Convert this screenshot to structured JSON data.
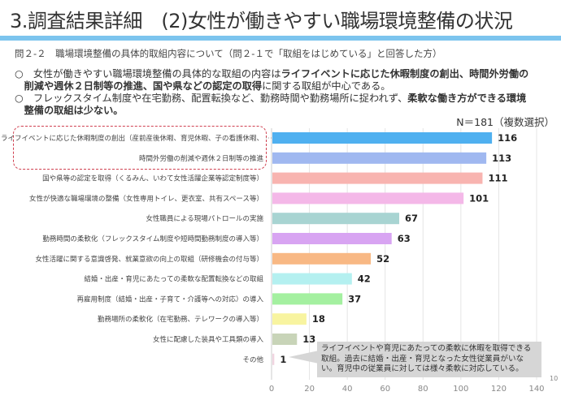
{
  "title": "3.調査結果詳細　(2)女性が働きやすい職場環境整備の状況",
  "question": "問２-２　職場環境整備の具体的取組内容について（問２-１で「取組をはじめている」と回答した方）",
  "bullets": [
    {
      "mark": "○",
      "pre": "　女性が働きやすい職場環境整備の具体的な取組の内容は",
      "b1": "ライフイベントに応じた休暇制度の創出、時間外労働の",
      "b1b": "削減や週休２日制等の推進、国や県などの認定の取得",
      "post": "に関する取組が中心である。"
    },
    {
      "mark": "○",
      "pre": "　フレックスタイム制度や在宅勤務、配置転換など、勤務時間や勤務場所に捉われず、",
      "b1": "柔軟な働き方ができる環境",
      "b1b": "整備の取組は少ない。",
      "post": ""
    }
  ],
  "sample_note": "N＝181（複数選択）",
  "callout": "ライフイベントや育児にあたっての柔軟に休暇を取得できる取組。過去に結婚・出産・育児となった女性従業員がいない。育児中の従業員に対しては様々柔軟に対応している。",
  "page_number": "10",
  "chart_data": {
    "type": "bar",
    "orientation": "horizontal",
    "categories": [
      "ライフイベントに応じた休暇制度の創出（産前産後休暇、育児休暇、子の看護休暇、",
      "時間外労働の削減や週休２日制等の推進",
      "国や県等の認定を取得（くるみん、いわて女性活躍企業等認定制度等）",
      "女性が快適な職場環境の整備（女性専用トイレ、更衣室、共有スペース等）",
      "女性職員による現場パトロールの実施",
      "勤務時間の柔軟化（フレックスタイム制度や短時間勤務制度の導入等）",
      "女性活躍に関する意識啓発、就業意欲の向上の取組（研修機会の付与等）",
      "結婚・出産・育児にあたっての柔軟な配置転換などの取組",
      "再雇用制度（結婚・出産・子育て・介護等への対応）の導入",
      "勤務場所の柔軟化（在宅勤務、テレワークの導入等）",
      "女性に配慮した装具や工具類の導入",
      "その他"
    ],
    "values": [
      116,
      113,
      111,
      101,
      67,
      63,
      52,
      42,
      37,
      18,
      13,
      1
    ],
    "colors": [
      "#4fb0f0",
      "#a0b8f0",
      "#f8b4b0",
      "#f4b8e8",
      "#a8d4d2",
      "#d8a4f2",
      "#f8b884",
      "#b4f0f0",
      "#a4f0a0",
      "#f8f4a0",
      "#c8d4b8",
      "#f0d4e0"
    ],
    "xlim": [
      0,
      140
    ],
    "xticks": [
      "0",
      "20",
      "40",
      "60",
      "80",
      "100",
      "120",
      "140"
    ],
    "grid": true
  }
}
